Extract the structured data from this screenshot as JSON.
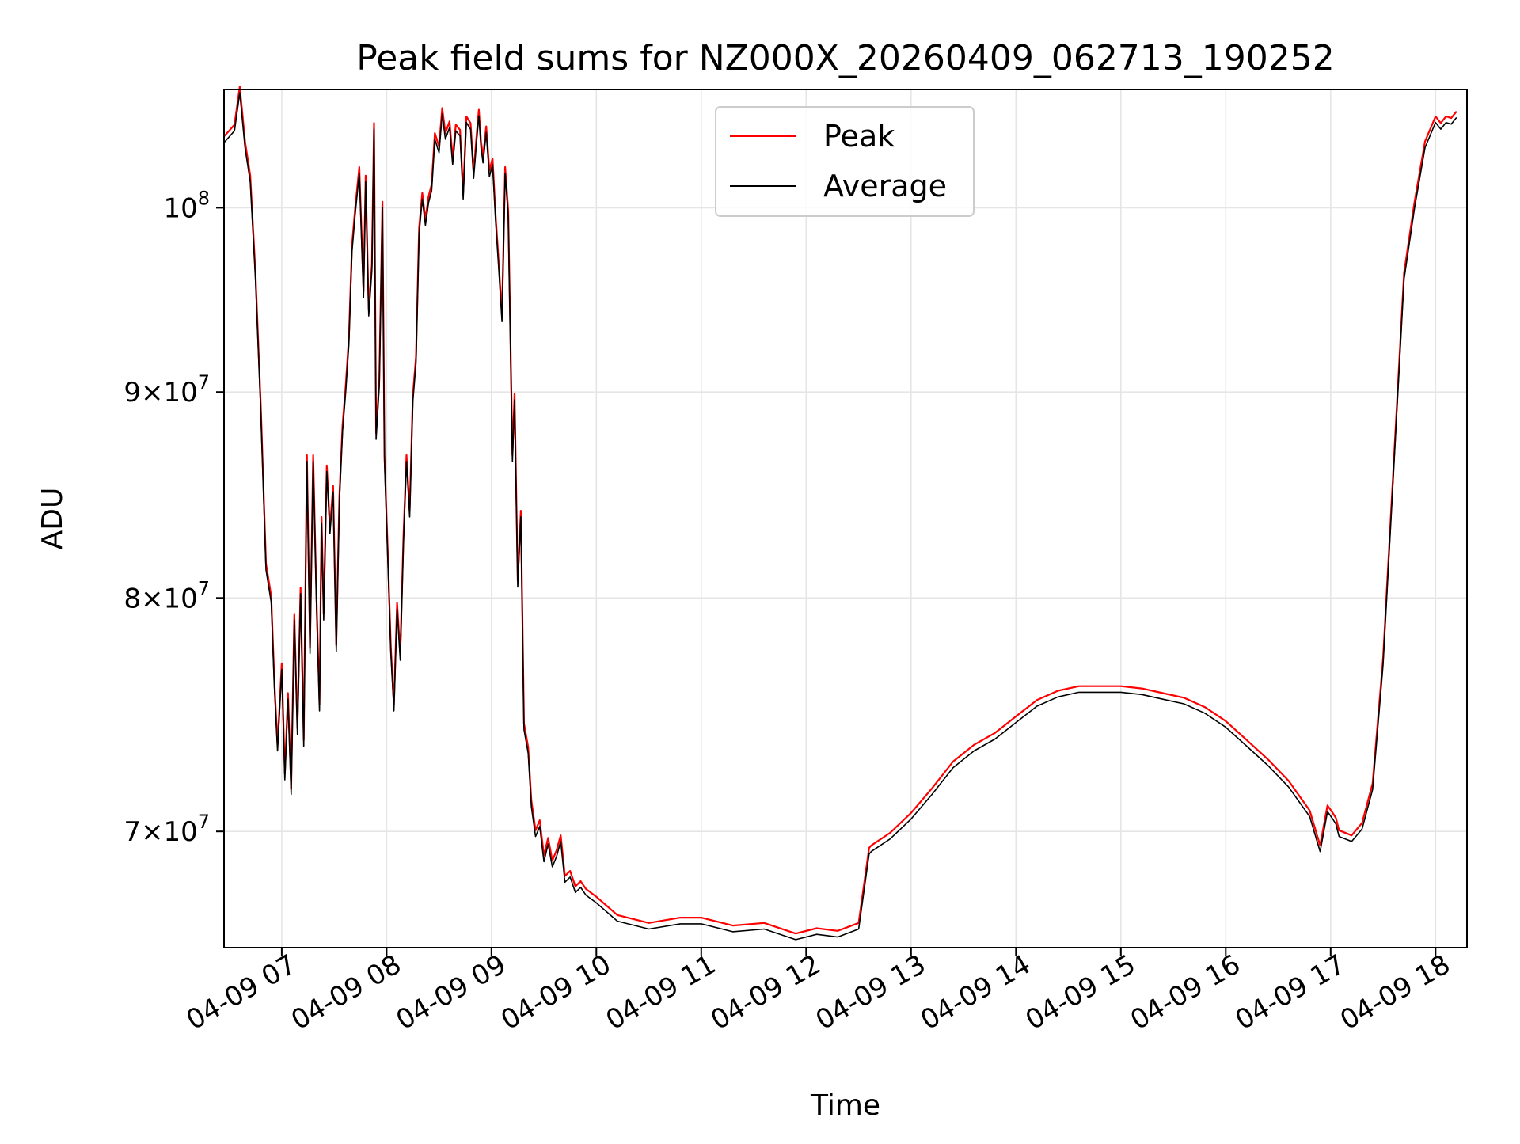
{
  "chart_data": {
    "type": "line",
    "title": "Peak field sums for NZ000X_20260409_062713_190252",
    "xlabel": "Time",
    "ylabel": "ADU",
    "yscale": "log",
    "xlim": [
      6.45,
      18.3
    ],
    "ylim": [
      65500000,
      107000000
    ],
    "grid": true,
    "legend_position": "upper-center",
    "x_ticks": [
      7,
      8,
      9,
      10,
      11,
      12,
      13,
      14,
      15,
      16,
      17,
      18
    ],
    "x_tick_labels": [
      "04-09 07",
      "04-09 08",
      "04-09 09",
      "04-09 10",
      "04-09 11",
      "04-09 12",
      "04-09 13",
      "04-09 14",
      "04-09 15",
      "04-09 16",
      "04-09 17",
      "04-09 18"
    ],
    "y_ticks": [
      70000000,
      80000000,
      90000000,
      100000000
    ],
    "y_tick_labels": [
      {
        "mantissa": "7",
        "times": "×",
        "base": "10",
        "exp": "7"
      },
      {
        "mantissa": "8",
        "times": "×",
        "base": "10",
        "exp": "7"
      },
      {
        "mantissa": "9",
        "times": "×",
        "base": "10",
        "exp": "7"
      },
      {
        "mantissa": "",
        "times": "",
        "base": "10",
        "exp": "8"
      }
    ],
    "series": [
      {
        "name": "Peak",
        "color": "#ff0000",
        "peak_offset": 0.0035
      },
      {
        "name": "Average",
        "color": "#000000",
        "peak_offset": 0
      }
    ],
    "x": [
      6.45,
      6.55,
      6.6,
      6.65,
      6.7,
      6.75,
      6.8,
      6.85,
      6.9,
      6.93,
      6.96,
      7.0,
      7.03,
      7.06,
      7.09,
      7.12,
      7.15,
      7.18,
      7.21,
      7.24,
      7.27,
      7.3,
      7.33,
      7.36,
      7.38,
      7.4,
      7.43,
      7.46,
      7.49,
      7.52,
      7.55,
      7.58,
      7.61,
      7.64,
      7.67,
      7.7,
      7.74,
      7.78,
      7.8,
      7.83,
      7.86,
      7.88,
      7.9,
      7.93,
      7.96,
      7.98,
      8.01,
      8.04,
      8.07,
      8.1,
      8.13,
      8.16,
      8.19,
      8.22,
      8.25,
      8.28,
      8.31,
      8.34,
      8.37,
      8.4,
      8.43,
      8.46,
      8.5,
      8.53,
      8.56,
      8.6,
      8.63,
      8.66,
      8.7,
      8.73,
      8.76,
      8.8,
      8.83,
      8.86,
      8.88,
      8.9,
      8.92,
      8.95,
      8.98,
      9.01,
      9.04,
      9.07,
      9.1,
      9.13,
      9.16,
      9.2,
      9.22,
      9.25,
      9.28,
      9.31,
      9.35,
      9.38,
      9.42,
      9.46,
      9.5,
      9.54,
      9.58,
      9.62,
      9.66,
      9.7,
      9.75,
      9.8,
      9.85,
      9.9,
      10.0,
      10.2,
      10.5,
      10.8,
      11.0,
      11.3,
      11.6,
      11.9,
      12.1,
      12.3,
      12.5,
      12.6,
      12.62,
      12.8,
      13.0,
      13.2,
      13.4,
      13.6,
      13.8,
      14.0,
      14.2,
      14.4,
      14.6,
      14.8,
      15.0,
      15.2,
      15.4,
      15.6,
      15.8,
      16.0,
      16.2,
      16.4,
      16.6,
      16.8,
      16.9,
      16.97,
      17.02,
      17.05,
      17.08,
      17.2,
      17.3,
      17.4,
      17.5,
      17.6,
      17.7,
      17.8,
      17.9,
      18.0,
      18.05,
      18.1,
      18.15,
      18.2,
      18.25,
      18.3
    ],
    "average": [
      103800000,
      104500000,
      106800000,
      103500000,
      101500000,
      96000000,
      89000000,
      81300000,
      79800000,
      76000000,
      73300000,
      76800000,
      72100000,
      75500000,
      71500000,
      79000000,
      74000000,
      80200000,
      73500000,
      86500000,
      77500000,
      86500000,
      80000000,
      75000000,
      83500000,
      79000000,
      86000000,
      83000000,
      85000000,
      77600000,
      84500000,
      88000000,
      90000000,
      92500000,
      97500000,
      99600000,
      102000000,
      95000000,
      101500000,
      94000000,
      96500000,
      104600000,
      87600000,
      90300000,
      100000000,
      86500000,
      82000000,
      77500000,
      75000000,
      79500000,
      77200000,
      82500000,
      86500000,
      83800000,
      89500000,
      91500000,
      98500000,
      100500000,
      99000000,
      100300000,
      101000000,
      104000000,
      103200000,
      105500000,
      104000000,
      104700000,
      102500000,
      104500000,
      104200000,
      100500000,
      105000000,
      104600000,
      101700000,
      104000000,
      105400000,
      103500000,
      102600000,
      104400000,
      101800000,
      102500000,
      99200000,
      96500000,
      93700000,
      102000000,
      99500000,
      86500000,
      89600000,
      80500000,
      83800000,
      74200000,
      73200000,
      71000000,
      69800000,
      70200000,
      68800000,
      69500000,
      68600000,
      69000000,
      69600000,
      68000000,
      68200000,
      67600000,
      67800000,
      67500000,
      67200000,
      66500000,
      66200000,
      66400000,
      66400000,
      66100000,
      66200000,
      65800000,
      66000000,
      65900000,
      66200000,
      69100000,
      69200000,
      69700000,
      70500000,
      71500000,
      72600000,
      73300000,
      73800000,
      74500000,
      75200000,
      75600000,
      75800000,
      75800000,
      75800000,
      75700000,
      75500000,
      75300000,
      74900000,
      74300000,
      73500000,
      72700000,
      71800000,
      70600000,
      69200000,
      70800000,
      70500000,
      70300000,
      69800000,
      69600000,
      70100000,
      71700000,
      77000000,
      86000000,
      96000000,
      100000000,
      103500000,
      105000000,
      104600000,
      105000000,
      104900000,
      105300000
    ]
  }
}
